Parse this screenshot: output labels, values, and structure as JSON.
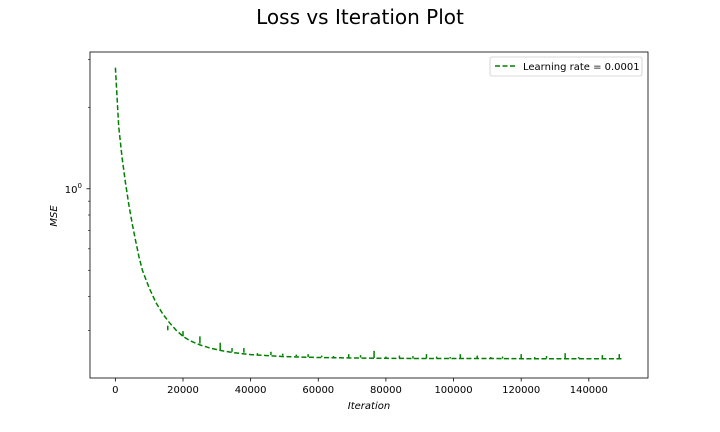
{
  "chart_data": {
    "type": "line",
    "title": "Loss vs Iteration Plot",
    "xlabel": "Iteration",
    "ylabel": "MSE",
    "xlim": [
      -7500,
      157500
    ],
    "ylim": [
      0.2,
      3.2
    ],
    "yscale": "log",
    "grid": false,
    "legend_position": "top-right",
    "x_ticks": [
      0,
      20000,
      40000,
      60000,
      80000,
      100000,
      120000,
      140000
    ],
    "x_tick_labels": [
      "0",
      "20000",
      "40000",
      "60000",
      "80000",
      "100000",
      "120000",
      "140000"
    ],
    "y_ticks": [
      1
    ],
    "y_tick_labels": [
      "10",
      "0"
    ],
    "series": [
      {
        "name": "Learning rate = 0.0001",
        "color": "#008000",
        "linestyle": "dashed",
        "x": [
          0,
          1000,
          2000,
          3000,
          4000,
          5000,
          6000,
          7000,
          8000,
          10000,
          12000,
          14000,
          16000,
          18000,
          20000,
          22000,
          25000,
          28000,
          31000,
          35000,
          40000,
          45000,
          50000,
          55000,
          60000,
          70000,
          80000,
          90000,
          100000,
          110000,
          120000,
          130000,
          140000,
          150000
        ],
        "y": [
          2.8,
          1.7,
          1.3,
          1.05,
          0.87,
          0.74,
          0.64,
          0.56,
          0.5,
          0.43,
          0.38,
          0.345,
          0.32,
          0.3,
          0.285,
          0.275,
          0.265,
          0.258,
          0.253,
          0.248,
          0.244,
          0.242,
          0.24,
          0.239,
          0.238,
          0.237,
          0.2365,
          0.236,
          0.236,
          0.236,
          0.2357,
          0.2357,
          0.2356,
          0.2356
        ],
        "spikes": [
          [
            15500,
            0.3,
            0.312
          ],
          [
            20000,
            0.285,
            0.298
          ],
          [
            25000,
            0.268,
            0.285
          ],
          [
            31000,
            0.253,
            0.27
          ],
          [
            34500,
            0.25,
            0.258
          ],
          [
            38000,
            0.248,
            0.258
          ],
          [
            42000,
            0.244,
            0.247
          ],
          [
            46000,
            0.243,
            0.25
          ],
          [
            49500,
            0.242,
            0.246
          ],
          [
            53500,
            0.241,
            0.244
          ],
          [
            57000,
            0.239,
            0.245
          ],
          [
            61000,
            0.239,
            0.242
          ],
          [
            64500,
            0.238,
            0.241
          ],
          [
            69000,
            0.238,
            0.245
          ],
          [
            72500,
            0.238,
            0.243
          ],
          [
            76500,
            0.237,
            0.252
          ],
          [
            80000,
            0.237,
            0.24
          ],
          [
            84000,
            0.237,
            0.242
          ],
          [
            88000,
            0.236,
            0.241
          ],
          [
            92000,
            0.236,
            0.245
          ],
          [
            95000,
            0.236,
            0.24
          ],
          [
            99000,
            0.236,
            0.239
          ],
          [
            102000,
            0.236,
            0.245
          ],
          [
            107000,
            0.236,
            0.242
          ],
          [
            111000,
            0.236,
            0.239
          ],
          [
            114500,
            0.236,
            0.24
          ],
          [
            120000,
            0.236,
            0.245
          ],
          [
            124000,
            0.236,
            0.239
          ],
          [
            127500,
            0.236,
            0.241
          ],
          [
            133000,
            0.236,
            0.247
          ],
          [
            137000,
            0.236,
            0.239
          ],
          [
            144000,
            0.236,
            0.243
          ],
          [
            149000,
            0.236,
            0.245
          ]
        ]
      }
    ]
  }
}
